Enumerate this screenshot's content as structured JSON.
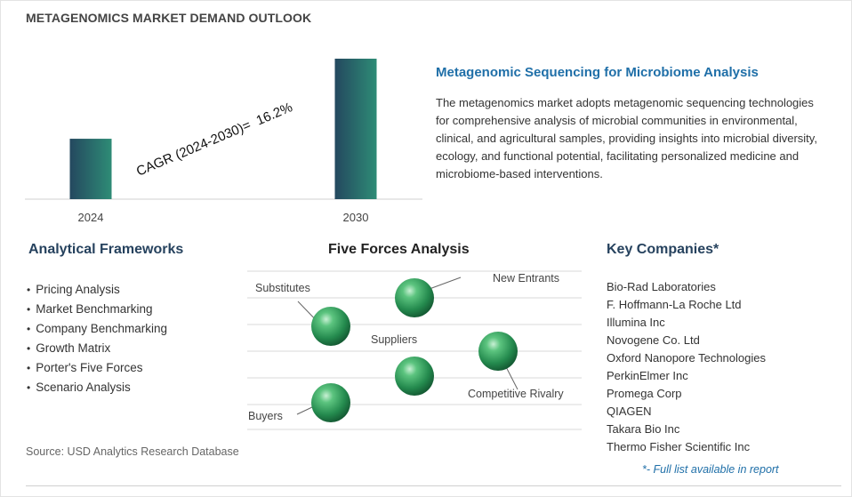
{
  "title": "METAGENOMICS MARKET DEMAND OUTLOOK",
  "chart_data": {
    "type": "bar",
    "categories": [
      "2024",
      "2030"
    ],
    "values": [
      0.43,
      1.0
    ],
    "annotation": "CAGR (2024-2030)=  16.2%",
    "xlabel": "",
    "ylabel": "",
    "grid": false,
    "colors": {
      "bar_dark": "#24485f",
      "bar_light": "#2e8c76"
    }
  },
  "description": {
    "heading": "Metagenomic Sequencing for Microbiome Analysis",
    "text": "The metagenomics market adopts metagenomic sequencing technologies for comprehensive analysis of microbial communities in environmental, clinical, and agricultural samples, providing insights into microbial diversity, ecology, and functional potential, facilitating personalized medicine and microbiome-based interventions."
  },
  "frameworks": {
    "heading": "Analytical Frameworks",
    "items": [
      "Pricing Analysis",
      "Market Benchmarking",
      "Company Benchmarking",
      "Growth Matrix",
      "Porter's Five Forces",
      "Scenario Analysis"
    ]
  },
  "five_forces": {
    "heading": "Five Forces Analysis",
    "labels": {
      "substitutes": "Substitutes",
      "new_entrants": "New Entrants",
      "suppliers": "Suppliers",
      "competitive_rivalry": "Competitive Rivalry",
      "buyers": "Buyers"
    }
  },
  "companies": {
    "heading": "Key Companies*",
    "items": [
      "Bio-Rad Laboratories",
      "F. Hoffmann-La Roche Ltd",
      "Illumina Inc",
      "Novogene Co. Ltd",
      "Oxford Nanopore Technologies",
      "PerkinElmer Inc",
      "Promega Corp",
      "QIAGEN",
      "Takara Bio Inc",
      "Thermo Fisher Scientific Inc"
    ],
    "note": "*- Full list available in report"
  },
  "source": "Source: USD Analytics Research Database",
  "colors": {
    "accent_blue": "#1f6fa8",
    "heading_navy": "#26425e",
    "sphere_green": "#2f9a5e"
  }
}
